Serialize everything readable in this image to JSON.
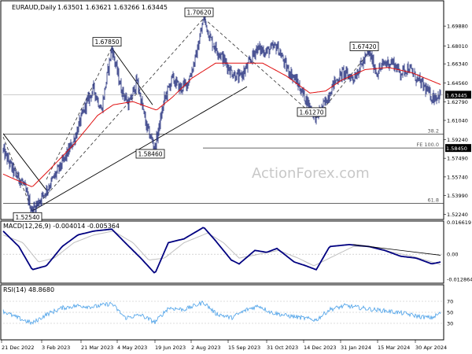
{
  "header": {
    "symbol": "EURAUD,Daily",
    "ohlc": "1.63501 1.63621 1.63266 1.63445"
  },
  "watermark": "ActionForex.com",
  "colors": {
    "candle": "#1e2a7a",
    "sma": "#e01010",
    "macd_line": "#000080",
    "macd_signal": "#bfbfbf",
    "rsi": "#4aa0e8",
    "trendline": "#000000",
    "fib_line": "#333333",
    "channel": "#444444"
  },
  "chart_data": [
    {
      "type": "candlestick",
      "panel": "price",
      "ylim": [
        1.5175,
        1.7225
      ],
      "y_ticks": [
        "1.69880",
        "1.68010",
        "1.66340",
        "1.64560",
        "1.62790",
        "1.61040",
        "1.59240",
        "1.57490",
        "1.55740",
        "1.53990",
        "1.52240"
      ],
      "x_ticks": [
        "21 Dec 2022",
        "3 Feb 2023",
        "21 Mar 2023",
        "4 May 2023",
        "19 Jun 2023",
        "2 Aug 2023",
        "15 Sep 2023",
        "31 Oct 2023",
        "14 Dec 2023",
        "31 Jan 2024",
        "15 Mar 2024",
        "30 Apr 2024"
      ],
      "current_price": "1.63445",
      "fib_price_label": "1.58450",
      "fib_labels": [
        "38.2",
        "FE 100.0",
        "61.8"
      ],
      "fib_levels": [
        1.5975,
        1.5845,
        1.5325
      ],
      "price_annotations": [
        {
          "label": "1.52540",
          "value": 1.5254,
          "bar": 37
        },
        {
          "label": "1.67850",
          "value": 1.6785,
          "bar": 138
        },
        {
          "label": "1.58460",
          "value": 1.5846,
          "bar": 193
        },
        {
          "label": "1.70620",
          "value": 1.7062,
          "bar": 255
        },
        {
          "label": "1.61270",
          "value": 1.6127,
          "bar": 398
        },
        {
          "label": "1.67420",
          "value": 1.6742,
          "bar": 465
        }
      ],
      "anchors": [
        [
          0,
          1.582
        ],
        [
          15,
          1.56
        ],
        [
          25,
          1.552
        ],
        [
          37,
          1.5254
        ],
        [
          55,
          1.545
        ],
        [
          75,
          1.57
        ],
        [
          90,
          1.592
        ],
        [
          105,
          1.625
        ],
        [
          115,
          1.64
        ],
        [
          125,
          1.62
        ],
        [
          138,
          1.6785
        ],
        [
          150,
          1.64
        ],
        [
          160,
          1.625
        ],
        [
          170,
          1.648
        ],
        [
          182,
          1.605
        ],
        [
          193,
          1.5846
        ],
        [
          205,
          1.63
        ],
        [
          215,
          1.65
        ],
        [
          225,
          1.64
        ],
        [
          235,
          1.646
        ],
        [
          245,
          1.67
        ],
        [
          255,
          1.7062
        ],
        [
          265,
          1.684
        ],
        [
          278,
          1.67
        ],
        [
          290,
          1.656
        ],
        [
          300,
          1.65
        ],
        [
          310,
          1.66
        ],
        [
          322,
          1.678
        ],
        [
          335,
          1.675
        ],
        [
          348,
          1.68
        ],
        [
          360,
          1.66
        ],
        [
          372,
          1.648
        ],
        [
          385,
          1.63
        ],
        [
          398,
          1.6127
        ],
        [
          410,
          1.628
        ],
        [
          420,
          1.645
        ],
        [
          432,
          1.655
        ],
        [
          445,
          1.65
        ],
        [
          455,
          1.662
        ],
        [
          465,
          1.6742
        ],
        [
          475,
          1.655
        ],
        [
          485,
          1.664
        ],
        [
          495,
          1.665
        ],
        [
          505,
          1.655
        ],
        [
          515,
          1.66
        ],
        [
          525,
          1.65
        ],
        [
          535,
          1.642
        ],
        [
          545,
          1.632
        ],
        [
          556,
          1.63445
        ]
      ],
      "sma_anchors": [
        [
          0,
          1.56
        ],
        [
          37,
          1.548
        ],
        [
          60,
          1.565
        ],
        [
          90,
          1.588
        ],
        [
          120,
          1.615
        ],
        [
          140,
          1.625
        ],
        [
          165,
          1.628
        ],
        [
          195,
          1.62
        ],
        [
          215,
          1.632
        ],
        [
          240,
          1.65
        ],
        [
          270,
          1.664
        ],
        [
          300,
          1.664
        ],
        [
          330,
          1.664
        ],
        [
          360,
          1.652
        ],
        [
          390,
          1.636
        ],
        [
          410,
          1.638
        ],
        [
          430,
          1.648
        ],
        [
          460,
          1.658
        ],
        [
          490,
          1.66
        ],
        [
          520,
          1.655
        ],
        [
          556,
          1.644
        ]
      ],
      "total_bars": 557
    },
    {
      "type": "line",
      "panel": "macd",
      "title": "MACD(12,26,9) -0.004014 -0.005364",
      "ylim": [
        -0.015,
        0.0172
      ],
      "y_ticks": [
        "0.016619",
        "0.00",
        "-0.012864"
      ],
      "macd_anchors": [
        [
          0,
          0.012
        ],
        [
          20,
          0.004
        ],
        [
          37,
          -0.008
        ],
        [
          55,
          -0.006
        ],
        [
          75,
          0.004
        ],
        [
          95,
          0.01
        ],
        [
          115,
          0.012
        ],
        [
          138,
          0.013
        ],
        [
          160,
          0.004
        ],
        [
          175,
          -0.002
        ],
        [
          193,
          -0.01
        ],
        [
          210,
          0.006
        ],
        [
          230,
          0.008
        ],
        [
          255,
          0.014
        ],
        [
          270,
          0.007
        ],
        [
          290,
          -0.003
        ],
        [
          300,
          -0.005
        ],
        [
          320,
          0.002
        ],
        [
          335,
          0.001
        ],
        [
          348,
          0.003
        ],
        [
          370,
          -0.004
        ],
        [
          385,
          -0.006
        ],
        [
          398,
          -0.008
        ],
        [
          415,
          0.004
        ],
        [
          440,
          0.005
        ],
        [
          465,
          0.004
        ],
        [
          485,
          0.002
        ],
        [
          505,
          -0.001
        ],
        [
          525,
          -0.002
        ],
        [
          545,
          -0.005
        ],
        [
          556,
          -0.004
        ]
      ],
      "signal_anchors": [
        [
          0,
          0.01
        ],
        [
          25,
          0.006
        ],
        [
          45,
          -0.004
        ],
        [
          65,
          -0.002
        ],
        [
          90,
          0.006
        ],
        [
          115,
          0.01
        ],
        [
          140,
          0.012
        ],
        [
          165,
          0.006
        ],
        [
          185,
          -0.003
        ],
        [
          205,
          -0.002
        ],
        [
          230,
          0.006
        ],
        [
          260,
          0.011
        ],
        [
          280,
          0.006
        ],
        [
          300,
          -0.002
        ],
        [
          325,
          0.0
        ],
        [
          350,
          0.002
        ],
        [
          375,
          -0.002
        ],
        [
          395,
          -0.006
        ],
        [
          420,
          -0.001
        ],
        [
          445,
          0.004
        ],
        [
          470,
          0.004
        ],
        [
          495,
          0.001
        ],
        [
          520,
          -0.001
        ],
        [
          545,
          -0.004
        ],
        [
          556,
          -0.0054
        ]
      ]
    },
    {
      "type": "line",
      "panel": "rsi",
      "title": "RSI(14) 48.8680",
      "ylim": [
        0,
        100
      ],
      "y_ticks": [
        "70",
        "50",
        "30"
      ],
      "levels": [
        70,
        50,
        30
      ],
      "rsi_anchors": [
        [
          0,
          52
        ],
        [
          15,
          42
        ],
        [
          37,
          30
        ],
        [
          55,
          46
        ],
        [
          75,
          58
        ],
        [
          95,
          62
        ],
        [
          115,
          60
        ],
        [
          138,
          66
        ],
        [
          155,
          40
        ],
        [
          175,
          45
        ],
        [
          193,
          32
        ],
        [
          210,
          58
        ],
        [
          230,
          55
        ],
        [
          255,
          68
        ],
        [
          270,
          48
        ],
        [
          290,
          40
        ],
        [
          310,
          55
        ],
        [
          325,
          62
        ],
        [
          340,
          50
        ],
        [
          360,
          44
        ],
        [
          380,
          40
        ],
        [
          398,
          36
        ],
        [
          415,
          55
        ],
        [
          435,
          62
        ],
        [
          455,
          58
        ],
        [
          470,
          55
        ],
        [
          490,
          52
        ],
        [
          510,
          48
        ],
        [
          530,
          42
        ],
        [
          545,
          40
        ],
        [
          556,
          48.868
        ]
      ]
    }
  ]
}
